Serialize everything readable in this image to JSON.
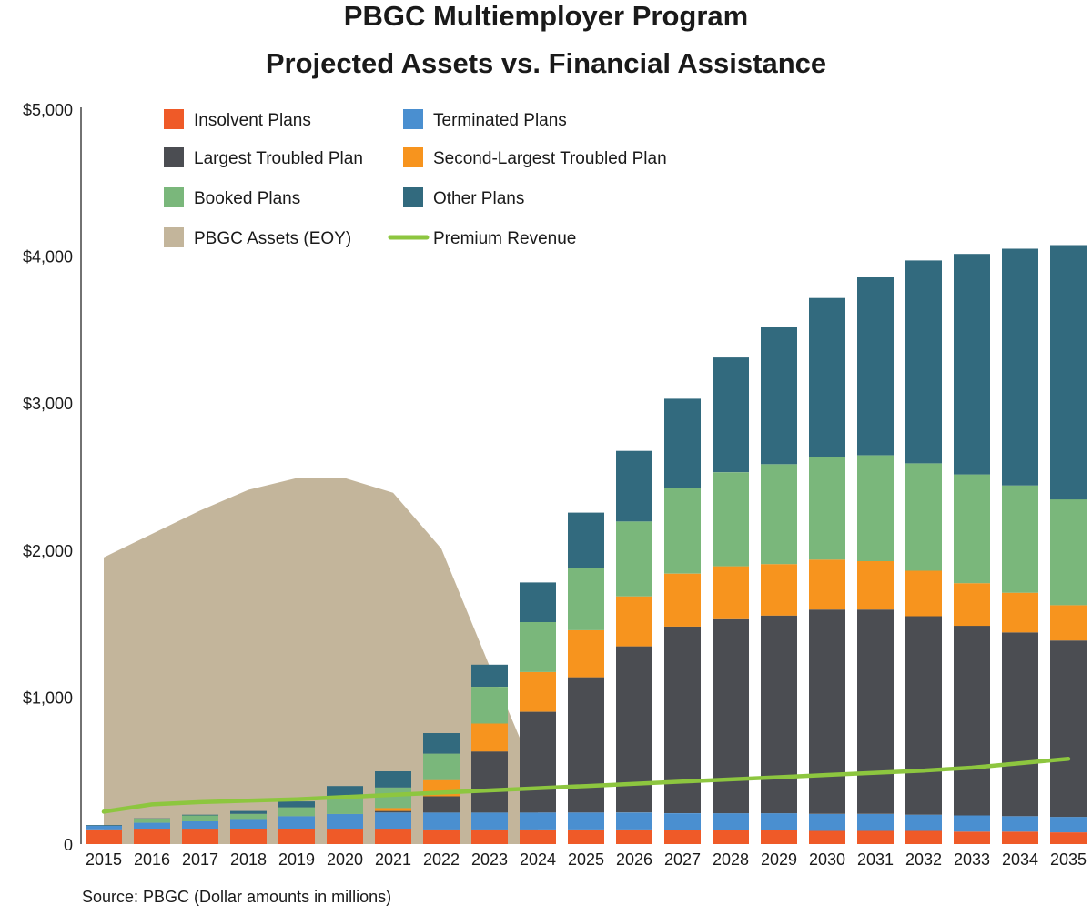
{
  "chart_data": {
    "type": "bar",
    "title": "PBGC Multiemployer Program",
    "subtitle": "Projected Assets vs. Financial Assistance",
    "source": "Source: PBGC (Dollar amounts in millions)",
    "xlabel": "",
    "ylabel": "",
    "ylim": [
      0,
      5000
    ],
    "yticks": [
      0,
      1000,
      2000,
      3000,
      4000,
      5000
    ],
    "ytick_labels": [
      "0",
      "$1,000",
      "$2,000",
      "$3,000",
      "$4,000",
      "$5,000"
    ],
    "categories": [
      "2015",
      "2016",
      "2017",
      "2018",
      "2019",
      "2020",
      "2021",
      "2022",
      "2023",
      "2024",
      "2025",
      "2026",
      "2027",
      "2028",
      "2029",
      "2030",
      "2031",
      "2032",
      "2033",
      "2034",
      "2035"
    ],
    "stacked": true,
    "grid": false,
    "legend_position": "top-left",
    "legend": [
      {
        "name": "Insolvent Plans",
        "color": "#ef5a28",
        "kind": "box"
      },
      {
        "name": "Terminated Plans",
        "color": "#4a8fd0",
        "kind": "box"
      },
      {
        "name": "Largest Troubled Plan",
        "color": "#4b4d52",
        "kind": "box"
      },
      {
        "name": "Second-Largest Troubled Plan",
        "color": "#f7941e",
        "kind": "box"
      },
      {
        "name": "Booked Plans",
        "color": "#7ab77b",
        "kind": "box"
      },
      {
        "name": "Other Plans",
        "color": "#326a7e",
        "kind": "box"
      },
      {
        "name": "PBGC Assets (EOY)",
        "color": "#c3b59b",
        "kind": "box"
      },
      {
        "name": "Premium Revenue",
        "color": "#8dc63f",
        "kind": "line"
      }
    ],
    "series": [
      {
        "name": "Insolvent Plans",
        "type": "bar",
        "color": "#ef5a28",
        "values": [
          100,
          105,
          105,
          105,
          105,
          105,
          105,
          100,
          100,
          100,
          100,
          100,
          95,
          95,
          95,
          90,
          90,
          90,
          85,
          85,
          80
        ]
      },
      {
        "name": "Terminated Plans",
        "type": "bar",
        "color": "#4a8fd0",
        "values": [
          25,
          40,
          50,
          60,
          85,
          100,
          110,
          115,
          115,
          115,
          115,
          115,
          115,
          115,
          115,
          115,
          115,
          110,
          110,
          105,
          105
        ]
      },
      {
        "name": "Largest Troubled Plan",
        "type": "bar",
        "color": "#4b4d52",
        "values": [
          0,
          0,
          0,
          0,
          0,
          0,
          10,
          110,
          415,
          685,
          920,
          1130,
          1270,
          1320,
          1345,
          1390,
          1390,
          1350,
          1290,
          1250,
          1200
        ]
      },
      {
        "name": "Second-Largest Troubled Plan",
        "type": "bar",
        "color": "#f7941e",
        "values": [
          0,
          0,
          0,
          0,
          0,
          0,
          20,
          110,
          190,
          270,
          320,
          340,
          360,
          360,
          350,
          340,
          330,
          310,
          290,
          270,
          240
        ]
      },
      {
        "name": "Booked Plans",
        "type": "bar",
        "color": "#7ab77b",
        "values": [
          0,
          25,
          40,
          40,
          60,
          120,
          140,
          180,
          250,
          340,
          420,
          510,
          580,
          640,
          680,
          700,
          720,
          730,
          740,
          730,
          720
        ]
      },
      {
        "name": "Other Plans",
        "type": "bar",
        "color": "#326a7e",
        "values": [
          5,
          5,
          5,
          20,
          40,
          70,
          110,
          140,
          150,
          270,
          380,
          480,
          610,
          780,
          930,
          1080,
          1210,
          1380,
          1500,
          1610,
          1730
        ]
      },
      {
        "name": "PBGC Assets (EOY)",
        "type": "area",
        "color": "#c3b59b",
        "values": [
          1950,
          2110,
          2270,
          2410,
          2490,
          2490,
          2390,
          2010,
          1210,
          430,
          null,
          null,
          null,
          null,
          null,
          null,
          null,
          null,
          null,
          null,
          null
        ]
      },
      {
        "name": "Premium Revenue",
        "type": "line",
        "color": "#8dc63f",
        "values": [
          220,
          270,
          285,
          295,
          305,
          320,
          335,
          350,
          365,
          380,
          395,
          410,
          425,
          440,
          455,
          470,
          485,
          500,
          520,
          550,
          580
        ]
      }
    ]
  }
}
